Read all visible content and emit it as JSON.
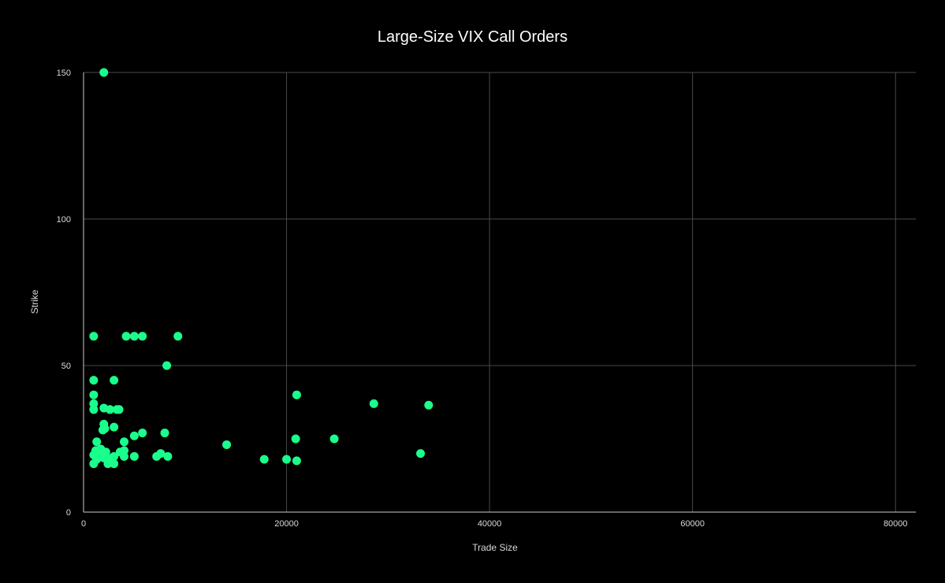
{
  "chart_data": {
    "type": "scatter",
    "title": "Large-Size VIX Call Orders",
    "xlabel": "Trade Size",
    "ylabel": "Strike",
    "xlim": [
      0,
      82000
    ],
    "ylim": [
      0,
      150
    ],
    "x_ticks": [
      0,
      20000,
      40000,
      60000,
      80000
    ],
    "y_ticks": [
      0,
      50,
      100,
      150
    ],
    "grid": true,
    "legend": "none",
    "colors": {
      "background": "#000000",
      "points": "#1aff8c",
      "grid": "#4a4a4a",
      "axis": "#cccccc",
      "text": "#d9d9d9",
      "title": "#ffffff"
    },
    "series": [
      {
        "points": [
          [
            2000,
            150
          ],
          [
            1000,
            60
          ],
          [
            4200,
            60
          ],
          [
            5000,
            60
          ],
          [
            5800,
            60
          ],
          [
            9300,
            60
          ],
          [
            8200,
            50
          ],
          [
            1000,
            45
          ],
          [
            3000,
            45
          ],
          [
            1000,
            40
          ],
          [
            21000,
            40
          ],
          [
            1000,
            37
          ],
          [
            28600,
            37
          ],
          [
            1000,
            35
          ],
          [
            2000,
            35.5
          ],
          [
            2600,
            35
          ],
          [
            3300,
            35
          ],
          [
            3500,
            35
          ],
          [
            34000,
            36.5
          ],
          [
            2000,
            30
          ],
          [
            1900,
            28
          ],
          [
            2100,
            28.5
          ],
          [
            3000,
            29
          ],
          [
            5800,
            27
          ],
          [
            8000,
            27
          ],
          [
            5000,
            26
          ],
          [
            20900,
            25
          ],
          [
            24700,
            25
          ],
          [
            1300,
            24
          ],
          [
            4000,
            24
          ],
          [
            14100,
            23
          ],
          [
            1200,
            21
          ],
          [
            1700,
            21.5
          ],
          [
            2200,
            20.5
          ],
          [
            3600,
            20.5
          ],
          [
            4000,
            21
          ],
          [
            7600,
            20
          ],
          [
            33200,
            20
          ],
          [
            1000,
            19.5
          ],
          [
            1500,
            19
          ],
          [
            2000,
            18.5
          ],
          [
            2400,
            18.5
          ],
          [
            3000,
            19
          ],
          [
            4000,
            19
          ],
          [
            5000,
            19
          ],
          [
            7200,
            19
          ],
          [
            8300,
            19
          ],
          [
            1300,
            18
          ],
          [
            2800,
            18
          ],
          [
            17800,
            18
          ],
          [
            20000,
            18
          ],
          [
            21000,
            17.5
          ],
          [
            1000,
            16.5
          ],
          [
            2400,
            16.5
          ],
          [
            3000,
            16.5
          ]
        ]
      }
    ]
  }
}
